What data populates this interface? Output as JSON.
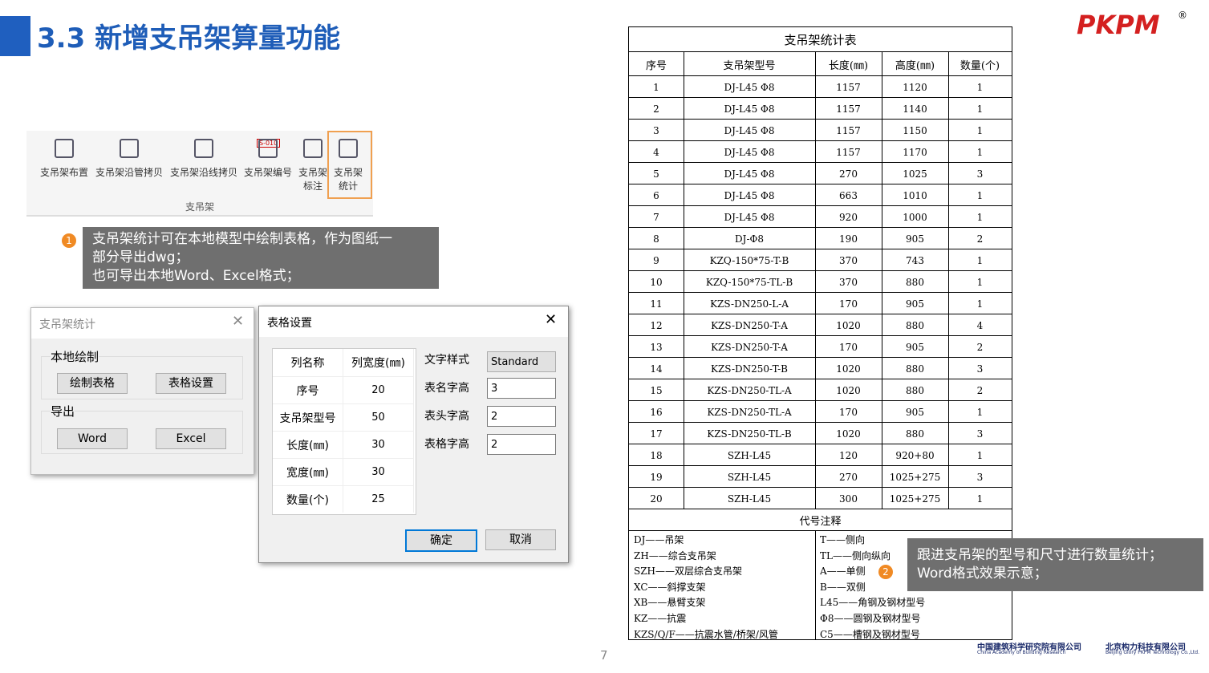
{
  "header": {
    "title": "3.3 新增支吊架算量功能"
  },
  "logo": {
    "text": "PKPM",
    "mark": "®"
  },
  "ribbon": {
    "items": [
      "支吊架布置",
      "支吊架沿管拷贝",
      "支吊架沿线拷贝",
      "支吊架编号",
      "支吊架\n标注",
      "支吊架\n统计"
    ],
    "icon_label": "S-010",
    "group": "支吊架"
  },
  "note1": {
    "badge": "1",
    "lines": [
      "支吊架统计可在本地模型中绘制表格，作为图纸一",
      "部分导出dwg；",
      "也可导出本地Word、Excel格式；"
    ]
  },
  "dialog1": {
    "title": "支吊架统计",
    "group1": "本地绘制",
    "buttons1": [
      "绘制表格",
      "表格设置"
    ],
    "group2": "导出",
    "buttons2": [
      "Word",
      "Excel"
    ]
  },
  "dialog2": {
    "title": "表格设置",
    "header": [
      "列名称",
      "列宽度(㎜)"
    ],
    "rows": [
      [
        "序号",
        20
      ],
      [
        "支吊架型号",
        50
      ],
      [
        "长度(㎜)",
        30
      ],
      [
        "宽度(㎜)",
        30
      ],
      [
        "数量(个)",
        25
      ]
    ],
    "fields": [
      [
        "文字样式",
        "Standard"
      ],
      [
        "表名字高",
        "3"
      ],
      [
        "表头字高",
        "2"
      ],
      [
        "表格字高",
        "2"
      ]
    ],
    "buttons": [
      "确定",
      "取消"
    ]
  },
  "table": {
    "title": "支吊架统计表",
    "header": [
      "序号",
      "支吊架型号",
      "长度(㎜)",
      "高度(㎜)",
      "数量(个)"
    ],
    "rows": [
      [
        1,
        "DJ-L45 Φ8",
        1157,
        1120,
        1
      ],
      [
        2,
        "DJ-L45 Φ8",
        1157,
        1140,
        1
      ],
      [
        3,
        "DJ-L45 Φ8",
        1157,
        1150,
        1
      ],
      [
        4,
        "DJ-L45 Φ8",
        1157,
        1170,
        1
      ],
      [
        5,
        "DJ-L45 Φ8",
        270,
        1025,
        3
      ],
      [
        6,
        "DJ-L45 Φ8",
        663,
        1010,
        1
      ],
      [
        7,
        "DJ-L45 Φ8",
        920,
        1000,
        1
      ],
      [
        8,
        "DJ-Φ8",
        190,
        905,
        2
      ],
      [
        9,
        "KZQ-150*75-T-B",
        370,
        743,
        1
      ],
      [
        10,
        "KZQ-150*75-TL-B",
        370,
        880,
        1
      ],
      [
        11,
        "KZS-DN250-L-A",
        170,
        905,
        1
      ],
      [
        12,
        "KZS-DN250-T-A",
        1020,
        880,
        4
      ],
      [
        13,
        "KZS-DN250-T-A",
        170,
        905,
        2
      ],
      [
        14,
        "KZS-DN250-T-B",
        1020,
        880,
        3
      ],
      [
        15,
        "KZS-DN250-TL-A",
        1020,
        880,
        2
      ],
      [
        16,
        "KZS-DN250-TL-A",
        170,
        905,
        1
      ],
      [
        17,
        "KZS-DN250-TL-B",
        1020,
        880,
        3
      ],
      [
        18,
        "SZH-L45",
        120,
        "920+80",
        1
      ],
      [
        19,
        "SZH-L45",
        270,
        "1025+275",
        3
      ],
      [
        20,
        "SZH-L45",
        300,
        "1025+275",
        1
      ]
    ],
    "notes_title": "代号注释",
    "notes_left": [
      "DJ——吊架",
      "ZH——综合支吊架",
      "SZH——双层综合支吊架",
      "XC——斜撑支架",
      "XB——悬臂支架",
      "KZ——抗震",
      "KZS/Q/F——抗震水管/桥架/风管"
    ],
    "notes_right": [
      "T——侧向",
      "TL——侧向纵向",
      "A——单侧",
      "B——双侧",
      "L45——角钢及钢材型号",
      "Φ8——圆钢及钢材型号",
      "C5——槽钢及钢材型号"
    ]
  },
  "note2": {
    "badge": "2",
    "lines": [
      "跟进支吊架的型号和尺寸进行数量统计；",
      "Word格式效果示意；"
    ]
  },
  "page_number": "7",
  "footer": {
    "org1": "中国建筑科学研究院有限公司",
    "org1_en": "China Academy of Building Research",
    "org2": "北京构力科技有限公司",
    "org2_en": "Beijing Glory PKPM Technology Co.,Ltd."
  }
}
